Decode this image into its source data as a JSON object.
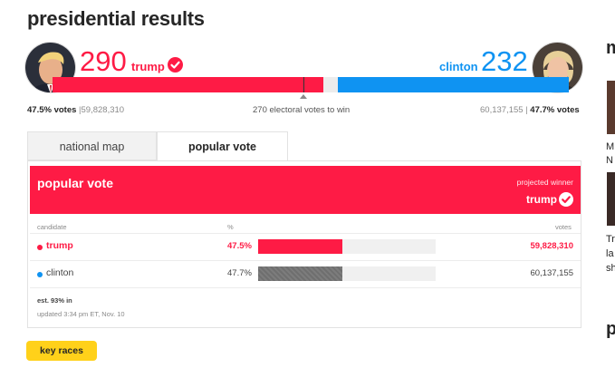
{
  "page_title": "presidential results",
  "scoreboard": {
    "trump": {
      "electoral_votes": "290",
      "name": "trump",
      "won": true,
      "vote_pct": "47.5% votes",
      "vote_count": "59,828,310",
      "color": "#fe1b45"
    },
    "clinton": {
      "electoral_votes": "232",
      "name": "clinton",
      "vote_pct": "47.7% votes",
      "vote_count": "60,137,155",
      "color": "#0f93f2"
    },
    "to_win": "270 electoral votes to win"
  },
  "tabs": [
    {
      "label": "national map",
      "active": false
    },
    {
      "label": "popular vote",
      "active": true
    }
  ],
  "card": {
    "title": "popular vote",
    "projected_label": "projected winner",
    "winner": "trump",
    "columns": {
      "candidate": "candidate",
      "pct": "%",
      "votes": "votes"
    },
    "rows": [
      {
        "candidate": "trump",
        "pct": "47.5%",
        "votes": "59,828,310",
        "bar_fraction": 0.475
      },
      {
        "candidate": "clinton",
        "pct": "47.7%",
        "votes": "60,137,155",
        "bar_fraction": 0.477
      }
    ],
    "est": "est. 93% in",
    "updated": "updated 3:34 pm ET, Nov. 10"
  },
  "key_races_label": "key races",
  "sidebar": {
    "heading_1": "m",
    "lines_1": [
      "M",
      "N"
    ],
    "lines_2": [
      "Tr",
      "la",
      "sh"
    ],
    "heading_2": "p"
  }
}
